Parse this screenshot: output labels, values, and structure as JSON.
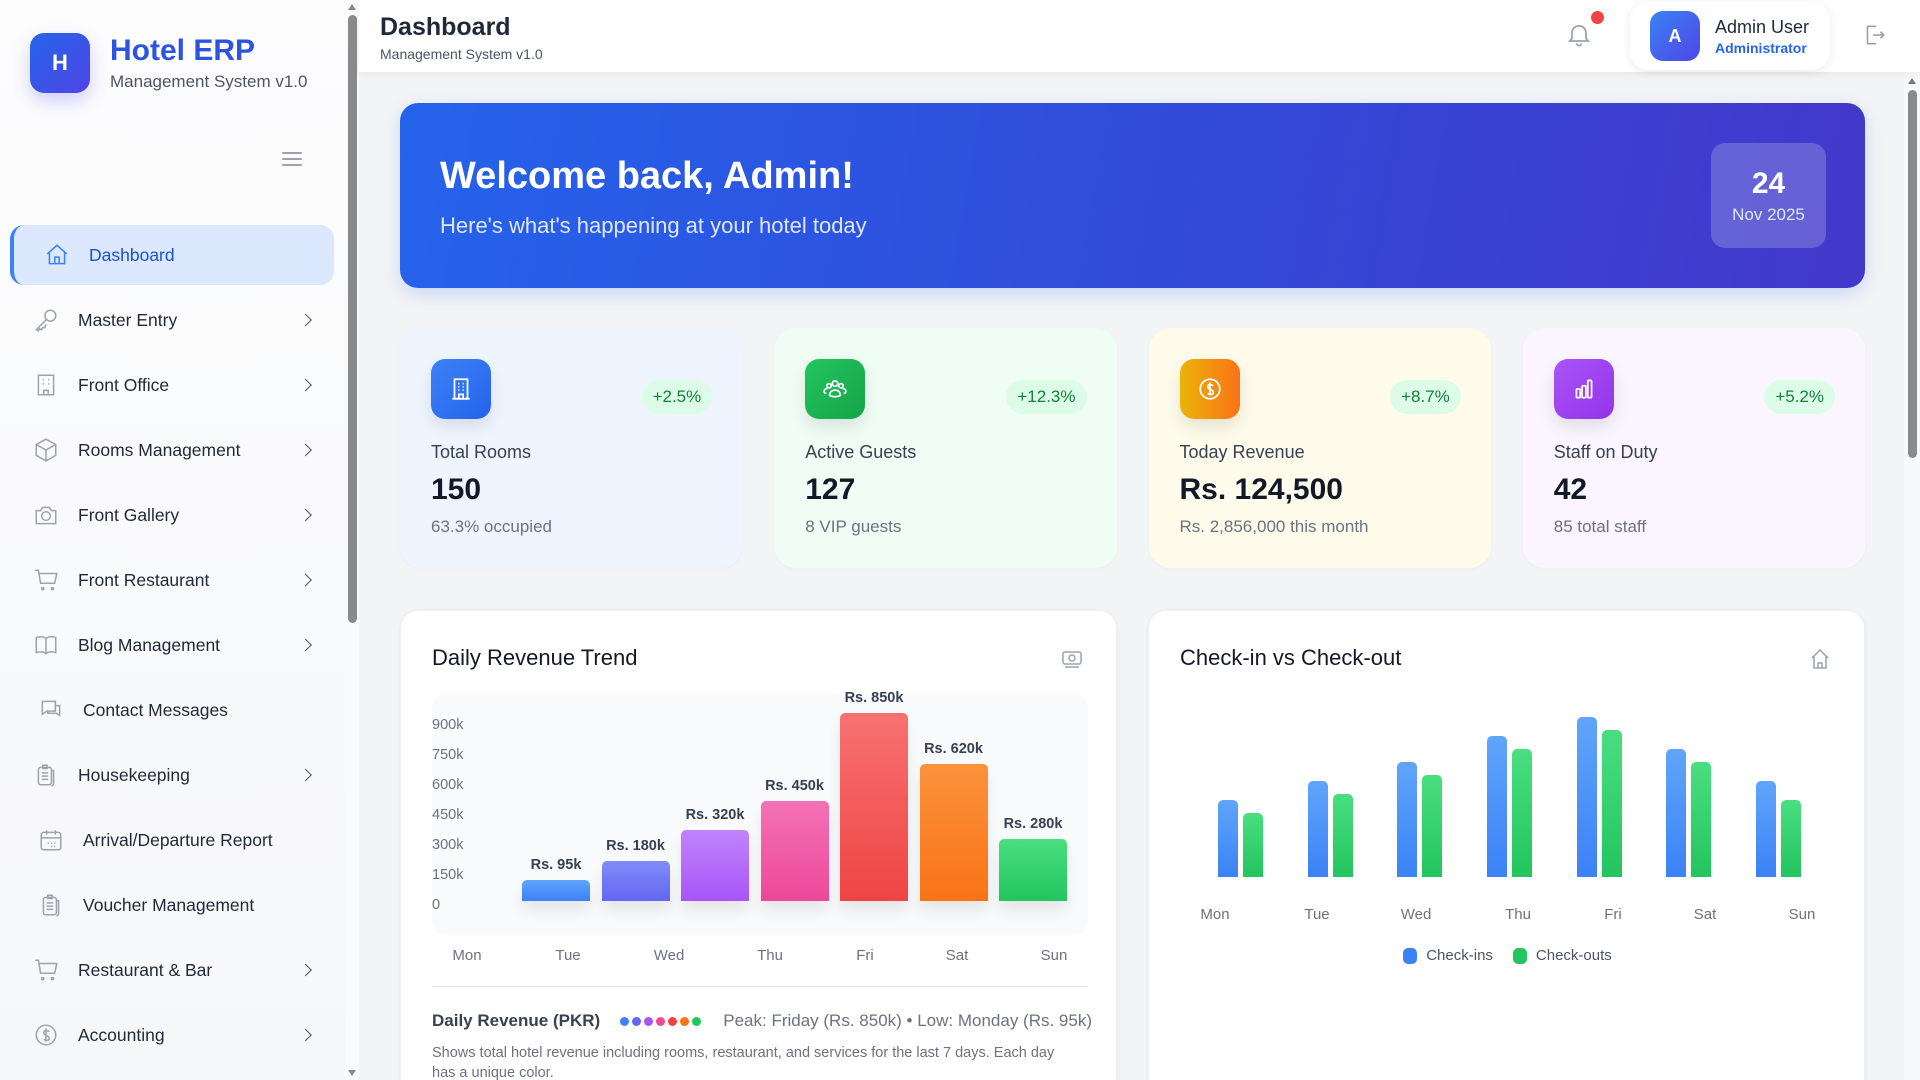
{
  "brand": {
    "logo_letter": "H",
    "title": "Hotel ERP",
    "subtitle": "Management System v1.0"
  },
  "sidebar": {
    "items": [
      {
        "label": "Dashboard",
        "icon": "home-icon",
        "active": true,
        "has_children": false
      },
      {
        "label": "Master Entry",
        "icon": "key-icon",
        "has_children": true
      },
      {
        "label": "Front Office",
        "icon": "building-icon",
        "has_children": true
      },
      {
        "label": "Rooms Management",
        "icon": "cube-icon",
        "has_children": true
      },
      {
        "label": "Front Gallery",
        "icon": "camera-icon",
        "has_children": true
      },
      {
        "label": "Front Restaurant",
        "icon": "cart-icon",
        "has_children": true
      },
      {
        "label": "Blog Management",
        "icon": "book-icon",
        "has_children": true
      },
      {
        "label": "Contact Messages",
        "icon": "chat-icon",
        "has_children": false
      },
      {
        "label": "Housekeeping",
        "icon": "clipboard-icon",
        "has_children": true
      },
      {
        "label": "Arrival/Departure Report",
        "icon": "calendar-icon",
        "has_children": false
      },
      {
        "label": "Voucher Management",
        "icon": "clipboard-icon",
        "has_children": false
      },
      {
        "label": "Restaurant & Bar",
        "icon": "cart-icon",
        "has_children": true
      },
      {
        "label": "Accounting",
        "icon": "dollar-circle-icon",
        "has_children": true
      }
    ]
  },
  "header": {
    "title": "Dashboard",
    "subtitle": "Management System v1.0",
    "user": {
      "avatar_letter": "A",
      "name": "Admin User",
      "role": "Administrator"
    },
    "notification_dot": true
  },
  "banner": {
    "title": "Welcome back, Admin!",
    "subtitle": "Here's what's happening at your hotel today",
    "date_day": "24",
    "date_month_year": "Nov 2025"
  },
  "stats": [
    {
      "label": "Total Rooms",
      "value": "150",
      "sub": "63.3% occupied",
      "change": "+2.5%",
      "icon": "building-icon",
      "bg": "#eff5ff",
      "icon_gradient": [
        "#3b82f6",
        "#2563eb"
      ]
    },
    {
      "label": "Active Guests",
      "value": "127",
      "sub": "8 VIP guests",
      "change": "+12.3%",
      "icon": "users-icon",
      "bg": "#effdf4",
      "icon_gradient": [
        "#22c55e",
        "#16a34a"
      ]
    },
    {
      "label": "Today Revenue",
      "value": "Rs. 124,500",
      "sub": "Rs. 2,856,000 this month",
      "change": "+8.7%",
      "icon": "dollar-circle-icon",
      "bg": "#fefbea",
      "icon_gradient": [
        "#eab308",
        "#f97316"
      ]
    },
    {
      "label": "Staff on Duty",
      "value": "42",
      "sub": "85 total staff",
      "change": "+5.2%",
      "icon": "bar-chart-icon",
      "bg": "#fbf5ff",
      "icon_gradient": [
        "#a855f7",
        "#9333ea"
      ]
    }
  ],
  "revenue_card": {
    "title": "Daily Revenue Trend",
    "icon": "cash-icon",
    "legend_title": "Daily Revenue (PKR)",
    "legend_note": "Peak: Friday (Rs. 850k) • Low: Monday (Rs. 95k)",
    "description": "Shows total hotel revenue including rooms, restaurant, and services for the last 7 days. Each day has a unique color."
  },
  "checkin_card": {
    "title": "Check-in vs Check-out",
    "icon": "home-icon",
    "legend": [
      {
        "label": "Check-ins",
        "color": "#3b82f6"
      },
      {
        "label": "Check-outs",
        "color": "#22c55e"
      }
    ]
  },
  "chart_data": [
    {
      "type": "bar",
      "title": "Daily Revenue Trend",
      "xlabel": "",
      "ylabel": "",
      "categories": [
        "Mon",
        "Tue",
        "Wed",
        "Thu",
        "Fri",
        "Sat",
        "Sun"
      ],
      "values": [
        95000,
        180000,
        320000,
        450000,
        850000,
        620000,
        280000
      ],
      "value_labels": [
        "Rs. 95k",
        "Rs. 180k",
        "Rs. 320k",
        "Rs. 450k",
        "Rs. 850k",
        "Rs. 620k",
        "Rs. 280k"
      ],
      "colors": [
        "#3b82f6",
        "#6366f1",
        "#a855f7",
        "#ec4899",
        "#ef4444",
        "#f97316",
        "#22c55e"
      ],
      "yticks": [
        "0",
        "150k",
        "300k",
        "450k",
        "600k",
        "750k",
        "900k"
      ],
      "ylim": [
        0,
        900000
      ],
      "grid": false,
      "legend_position": "bottom"
    },
    {
      "type": "bar",
      "title": "Check-in vs Check-out",
      "categories": [
        "Mon",
        "Tue",
        "Wed",
        "Thu",
        "Fri",
        "Sat",
        "Sun"
      ],
      "series": [
        {
          "name": "Check-ins",
          "color": "#3b82f6",
          "values": [
            12,
            15,
            18,
            22,
            25,
            20,
            15
          ]
        },
        {
          "name": "Check-outs",
          "color": "#22c55e",
          "values": [
            10,
            13,
            16,
            20,
            23,
            18,
            12
          ]
        }
      ],
      "ylim": [
        0,
        25
      ],
      "grid": false,
      "legend_position": "bottom"
    }
  ]
}
